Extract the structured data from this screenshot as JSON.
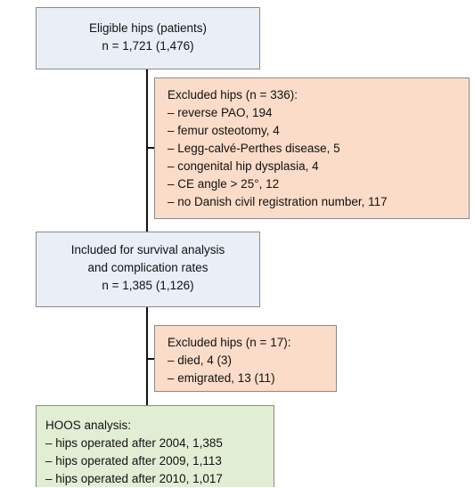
{
  "nodes": [
    {
      "lines": [
        "Eligible hips (patients)",
        "n = 1,721 (1,476)"
      ]
    },
    {
      "lines": [
        "Excluded hips (n = 336):",
        "– reverse PAO, 194",
        "– femur osteotomy, 4",
        "– Legg-calvé-Perthes disease, 5",
        "– congenital hip dysplasia, 4",
        "– CE angle > 25°, 12",
        "– no Danish civil registration number, 117"
      ]
    },
    {
      "lines": [
        "Included for survival analysis",
        "and complication rates",
        "n = 1,385 (1,126)"
      ]
    },
    {
      "lines": [
        "Excluded hips (n = 17):",
        "– died, 4 (3)",
        "– emigrated, 13 (11)"
      ]
    },
    {
      "lines": [
        "HOOS analysis:",
        "– hips operated after 2004, 1,385",
        "– hips operated after 2009, 1,113",
        "– hips operated after 2010, 1,017"
      ]
    }
  ]
}
